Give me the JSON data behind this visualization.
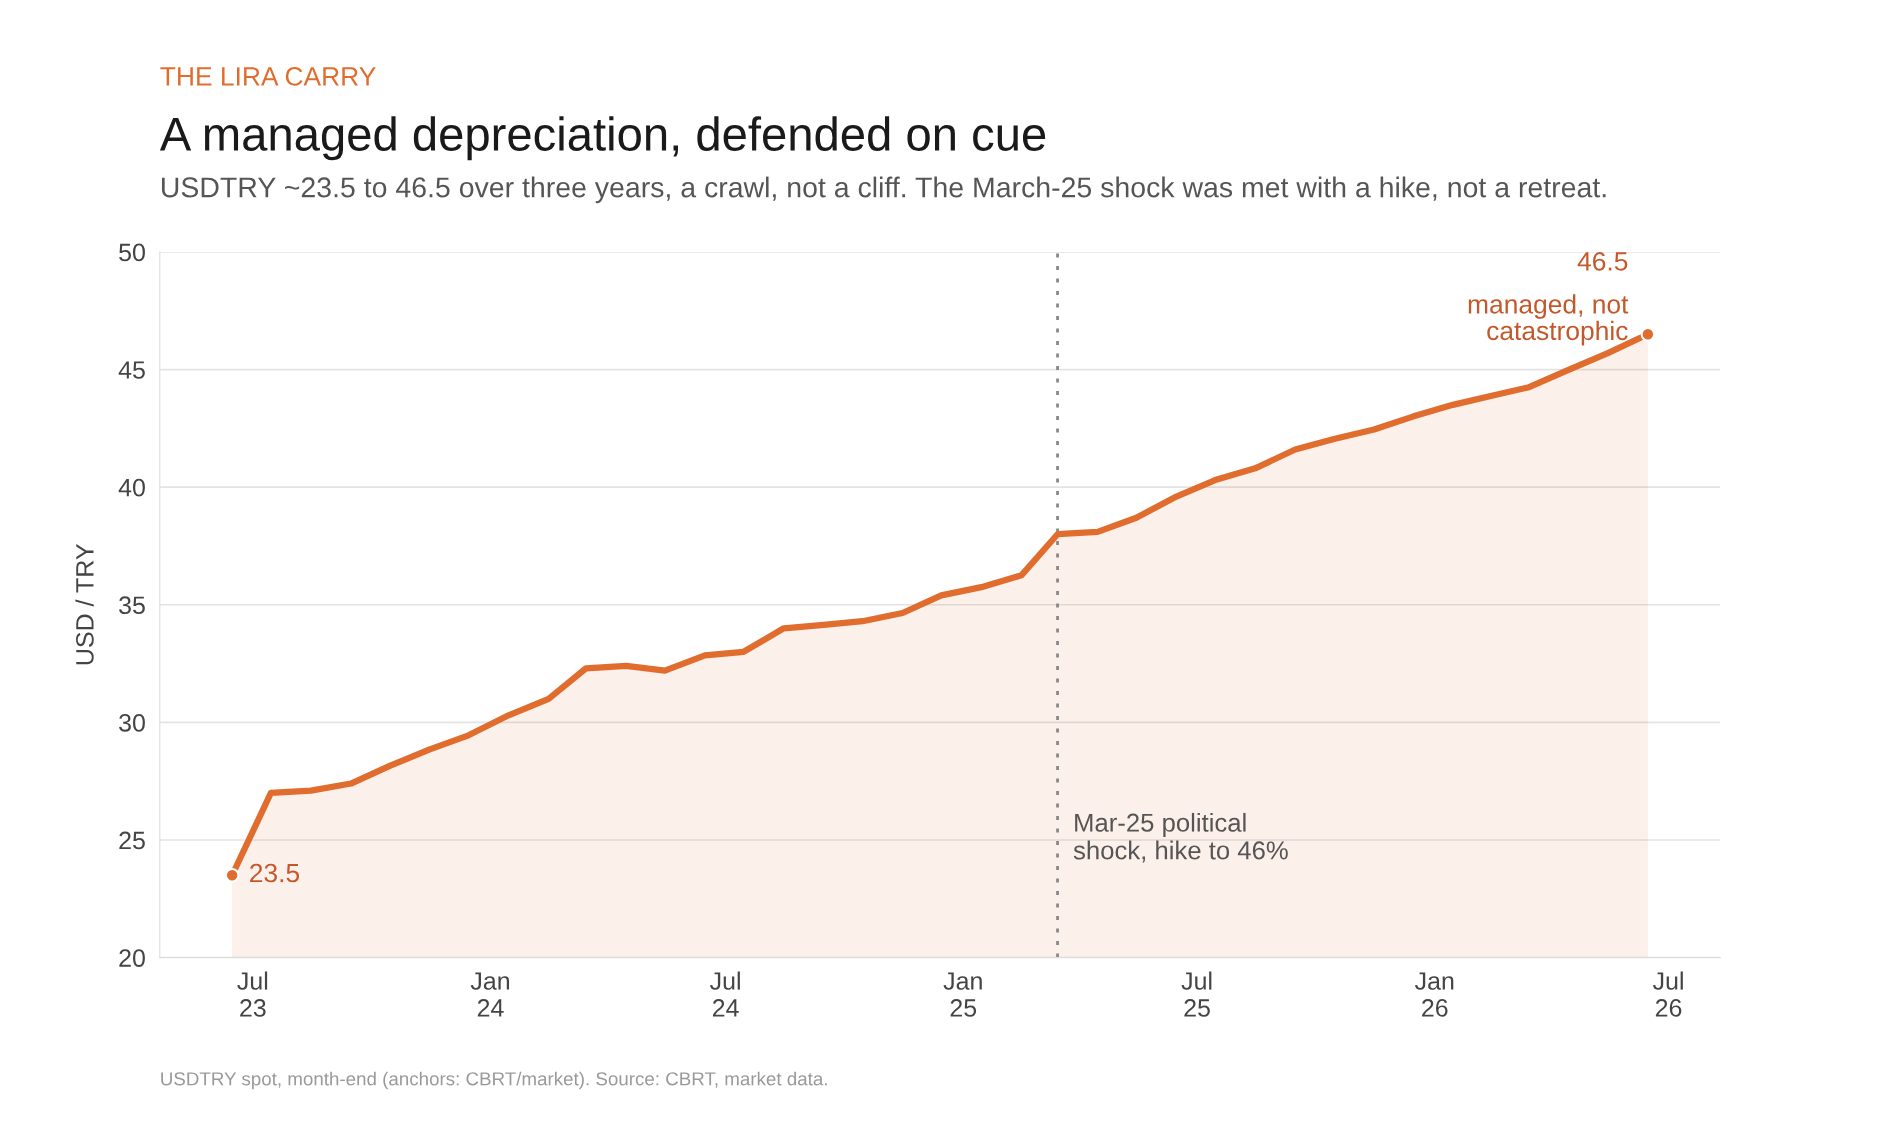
{
  "chart_data": {
    "type": "area",
    "title": "A managed depreciation, defended on cue",
    "subtitle": "USDTRY ~23.5 to 46.5 over three years, a crawl, not a cliff. The March-25 shock was met with a hike, not a retreat.",
    "ylabel": "USD / TRY",
    "x": [
      "2023-06-15",
      "2023-07-15",
      "2023-08-15",
      "2023-09-15",
      "2023-10-15",
      "2023-11-15",
      "2023-12-15",
      "2024-01-15",
      "2024-02-15",
      "2024-03-15",
      "2024-04-15",
      "2024-05-15",
      "2024-06-15",
      "2024-07-15",
      "2024-08-15",
      "2024-09-15",
      "2024-10-15",
      "2024-11-15",
      "2024-12-15",
      "2025-01-15",
      "2025-02-15",
      "2025-03-15",
      "2025-04-15",
      "2025-05-15",
      "2025-06-15",
      "2025-07-15",
      "2025-08-15",
      "2025-09-15",
      "2025-10-15",
      "2025-11-15",
      "2025-12-15",
      "2026-01-15",
      "2026-02-15",
      "2026-03-15",
      "2026-04-15",
      "2026-05-15",
      "2026-06-15"
    ],
    "series": [
      {
        "color": "#e06c2e",
        "values": [
          23.5,
          27.0,
          27.1,
          27.4,
          28.15,
          28.85,
          29.45,
          30.3,
          31.0,
          32.3,
          32.4,
          32.2,
          32.85,
          33.0,
          34.0,
          34.15,
          34.3,
          34.65,
          35.4,
          35.75,
          36.25,
          38.0,
          38.1,
          38.7,
          39.6,
          40.3,
          40.8,
          41.6,
          42.05,
          42.45,
          43.0,
          43.5,
          43.9,
          44.25,
          45.0,
          45.7,
          46.5
        ],
        "value_labels": [
          "23.5",
          null,
          null,
          null,
          null,
          null,
          null,
          null,
          null,
          null,
          null,
          null,
          null,
          null,
          null,
          null,
          null,
          null,
          null,
          null,
          null,
          null,
          null,
          null,
          null,
          null,
          null,
          null,
          null,
          null,
          null,
          null,
          null,
          null,
          null,
          null,
          "46.5"
        ]
      }
    ],
    "xlim": [
      "2023-04-20",
      "2026-08-10"
    ],
    "xticks": [
      {
        "value": "2023-07-01",
        "label": "Jul\n23"
      },
      {
        "value": "2024-01-01",
        "label": "Jan\n24"
      },
      {
        "value": "2024-07-01",
        "label": "Jul\n24"
      },
      {
        "value": "2025-01-01",
        "label": "Jan\n25"
      },
      {
        "value": "2025-07-01",
        "label": "Jul\n25"
      },
      {
        "value": "2026-01-01",
        "label": "Jan\n26"
      },
      {
        "value": "2026-07-01",
        "label": "Jul\n26"
      }
    ],
    "ylim": [
      20,
      50
    ],
    "yticks": [
      20,
      25,
      30,
      35,
      40,
      45,
      50
    ],
    "grid": "y",
    "ref_lines": [
      {
        "axis": "x",
        "value": "2025-03-15",
        "label": "Mar-25 political\nshock, hike to 46%",
        "color": "#888888",
        "line_style": "dotted"
      }
    ],
    "annotations": [
      "THE LIRA CARRY",
      {
        "text": "managed, not\ncatastrophic",
        "x": "2026-06-15",
        "y": 46.5
      },
      "USDTRY spot, month-end (anchors: CBRT/market). Source: CBRT, market data."
    ]
  }
}
